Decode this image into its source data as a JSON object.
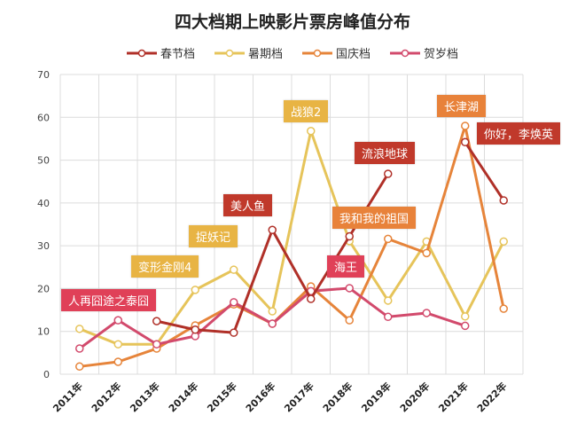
{
  "chart_data": {
    "type": "line",
    "title": "四大档期上映影片票房峰值分布",
    "categories": [
      "2011年",
      "2012年",
      "2013年",
      "2014年",
      "2015年",
      "2016年",
      "2017年",
      "2018年",
      "2019年",
      "2020年",
      "2021年",
      "2022年"
    ],
    "ylim": [
      0,
      70
    ],
    "yticks": [
      0,
      10,
      20,
      30,
      40,
      50,
      60,
      70
    ],
    "grid": true,
    "legend": "top",
    "series": [
      {
        "name": "春节档",
        "color": "#b03028",
        "values": [
          null,
          null,
          12.4,
          10.4,
          9.7,
          33.7,
          17.6,
          32.2,
          46.8,
          null,
          54.2,
          40.6
        ]
      },
      {
        "name": "暑期档",
        "color": "#e6c45a",
        "values": [
          10.6,
          7.0,
          7.0,
          19.7,
          24.4,
          14.7,
          56.8,
          31.1,
          17.2,
          31.0,
          13.5,
          31.0
        ]
      },
      {
        "name": "国庆档",
        "color": "#e6843a",
        "values": [
          1.8,
          2.9,
          6.0,
          11.4,
          16.3,
          11.8,
          20.5,
          12.6,
          31.6,
          28.3,
          58.0,
          15.3
        ]
      },
      {
        "name": "贺岁档",
        "color": "#d24a6c",
        "values": [
          6.0,
          12.6,
          7.0,
          8.9,
          16.8,
          11.8,
          19.4,
          20.1,
          13.4,
          14.3,
          11.3,
          null
        ]
      }
    ],
    "annotations": [
      {
        "text": "人再囧途之泰囧",
        "color": "#e04058"
      },
      {
        "text": "变形金刚4",
        "color": "#e8b444"
      },
      {
        "text": "捉妖记",
        "color": "#e8b444"
      },
      {
        "text": "美人鱼",
        "color": "#c0392b"
      },
      {
        "text": "战狼2",
        "color": "#e8b444"
      },
      {
        "text": "流浪地球",
        "color": "#c0392b"
      },
      {
        "text": "海王",
        "color": "#e04058"
      },
      {
        "text": "我和我的祖国",
        "color": "#e8823a"
      },
      {
        "text": "长津湖",
        "color": "#e8823a"
      },
      {
        "text": "你好，李焕英",
        "color": "#c0392b"
      }
    ]
  }
}
